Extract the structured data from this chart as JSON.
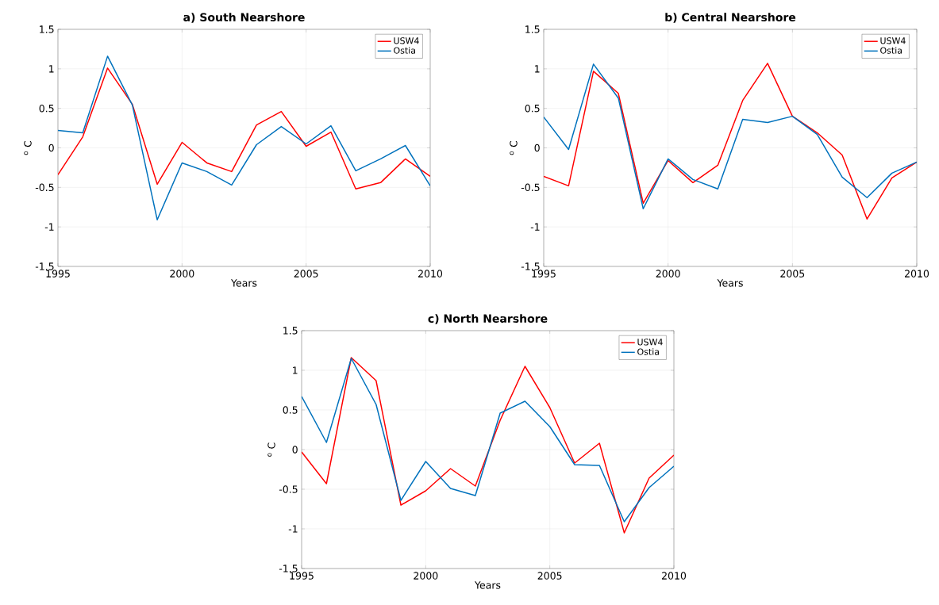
{
  "chart_data": [
    {
      "type": "line",
      "title": "a) South Nearshore",
      "xlabel": "Years",
      "ylabel": "$^{o}$ C",
      "x": [
        1995,
        1996,
        1997,
        1998,
        1999,
        2000,
        2001,
        2002,
        2003,
        2004,
        2005,
        2006,
        2007,
        2008,
        2009,
        2010
      ],
      "xlim": [
        1995,
        2010
      ],
      "ylim": [
        -1.5,
        1.5
      ],
      "xticks": [
        1995,
        2000,
        2005,
        2010
      ],
      "yticks": [
        -1.5,
        -1,
        -0.5,
        0,
        0.5,
        1,
        1.5
      ],
      "grid": true,
      "legend": "top right",
      "marker": "none",
      "line_style": "solid",
      "series": [
        {
          "name": "USW4",
          "color": "#ff0000",
          "values": [
            -0.34,
            0.14,
            1.01,
            0.55,
            -0.46,
            0.07,
            -0.19,
            -0.3,
            0.29,
            0.46,
            0.02,
            0.2,
            -0.52,
            -0.44,
            -0.14,
            -0.36
          ]
        },
        {
          "name": "Ostia",
          "color": "#0072bd",
          "values": [
            0.22,
            0.19,
            1.16,
            0.54,
            -0.91,
            -0.19,
            -0.3,
            -0.47,
            0.04,
            0.27,
            0.05,
            0.28,
            -0.29,
            -0.14,
            0.03,
            -0.48
          ]
        }
      ]
    },
    {
      "type": "line",
      "title": "b) Central Nearshore",
      "xlabel": "Years",
      "ylabel": "$^{o}$ C",
      "x": [
        1995,
        1996,
        1997,
        1998,
        1999,
        2000,
        2001,
        2002,
        2003,
        2004,
        2005,
        2006,
        2007,
        2008,
        2009,
        2010
      ],
      "xlim": [
        1995,
        2010
      ],
      "ylim": [
        -1.5,
        1.5
      ],
      "xticks": [
        1995,
        2000,
        2005,
        2010
      ],
      "yticks": [
        -1.5,
        -1,
        -0.5,
        0,
        0.5,
        1,
        1.5
      ],
      "grid": true,
      "legend": "top right",
      "marker": "none",
      "line_style": "solid",
      "series": [
        {
          "name": "USW4",
          "color": "#ff0000",
          "values": [
            -0.36,
            -0.48,
            0.97,
            0.69,
            -0.7,
            -0.16,
            -0.44,
            -0.22,
            0.6,
            1.07,
            0.4,
            0.19,
            -0.09,
            -0.9,
            -0.38,
            -0.18
          ]
        },
        {
          "name": "Ostia",
          "color": "#0072bd",
          "values": [
            0.39,
            -0.02,
            1.06,
            0.63,
            -0.77,
            -0.14,
            -0.4,
            -0.52,
            0.36,
            0.32,
            0.4,
            0.17,
            -0.37,
            -0.63,
            -0.32,
            -0.18
          ]
        }
      ]
    },
    {
      "type": "line",
      "title": "c) North Nearshore",
      "xlabel": "Years",
      "ylabel": "$^{o}$ C",
      "x": [
        1995,
        1996,
        1997,
        1998,
        1999,
        2000,
        2001,
        2002,
        2003,
        2004,
        2005,
        2006,
        2007,
        2008,
        2009,
        2010
      ],
      "xlim": [
        1995,
        2010
      ],
      "ylim": [
        -1.5,
        1.5
      ],
      "xticks": [
        1995,
        2000,
        2005,
        2010
      ],
      "yticks": [
        -1.5,
        -1,
        -0.5,
        0,
        0.5,
        1,
        1.5
      ],
      "grid": true,
      "legend": "top right",
      "marker": "none",
      "line_style": "solid",
      "series": [
        {
          "name": "USW4",
          "color": "#ff0000",
          "values": [
            -0.03,
            -0.43,
            1.16,
            0.87,
            -0.7,
            -0.52,
            -0.24,
            -0.46,
            0.37,
            1.05,
            0.53,
            -0.17,
            0.08,
            -1.05,
            -0.36,
            -0.07
          ]
        },
        {
          "name": "Ostia",
          "color": "#0072bd",
          "values": [
            0.67,
            0.09,
            1.15,
            0.57,
            -0.64,
            -0.15,
            -0.49,
            -0.58,
            0.46,
            0.61,
            0.29,
            -0.19,
            -0.2,
            -0.91,
            -0.48,
            -0.21
          ]
        }
      ]
    }
  ]
}
